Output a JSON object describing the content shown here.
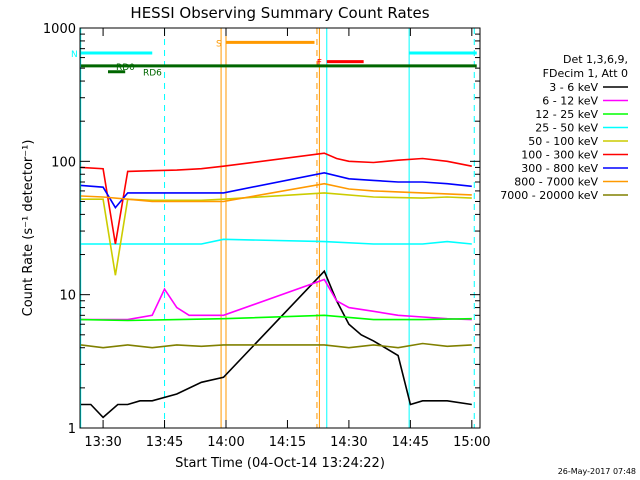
{
  "chart_data": {
    "type": "line",
    "title": "HESSI Observing Summary Count Rates",
    "xlabel": "Start Time (04-Oct-14 13:24:22)",
    "ylabel": "Count Rate (s⁻¹ detector⁻¹)",
    "yscale": "log",
    "ylim": [
      1,
      1000
    ],
    "xlim": [
      13.4061,
      15.0333
    ],
    "x_ticks": [
      "13:30",
      "13:45",
      "14:00",
      "14:15",
      "14:30",
      "14:45",
      "15:00"
    ],
    "x_tick_values": [
      13.5,
      13.75,
      14.0,
      14.25,
      14.5,
      14.75,
      15.0
    ],
    "y_ticks": [
      "1",
      "10",
      "100",
      "1000"
    ],
    "y_tick_values": [
      1,
      10,
      100,
      1000
    ],
    "legend": {
      "placement": "right",
      "header": [
        "Det 1,3,6,9,",
        "FDecim 1, Att 0"
      ]
    },
    "timestamp": "26-May-2017 07:48",
    "series": [
      {
        "name": "3 - 6 keV",
        "color": "#000000",
        "x": [
          13.41,
          13.45,
          13.5,
          13.56,
          13.6,
          13.65,
          13.7,
          13.8,
          13.9,
          13.99,
          14.4,
          14.45,
          14.5,
          14.55,
          14.6,
          14.7,
          14.75,
          14.8,
          14.9,
          15.0
        ],
        "y": [
          1.5,
          1.5,
          1.2,
          1.5,
          1.5,
          1.6,
          1.6,
          1.8,
          2.2,
          2.4,
          15,
          9,
          6,
          5,
          4.5,
          3.5,
          1.5,
          1.6,
          1.6,
          1.5
        ]
      },
      {
        "name": "6 - 12 keV",
        "color": "#ff00ff",
        "x": [
          13.41,
          13.5,
          13.6,
          13.7,
          13.75,
          13.8,
          13.85,
          13.9,
          13.99,
          14.4,
          14.45,
          14.5,
          14.6,
          14.7,
          14.8,
          14.9,
          15.0
        ],
        "y": [
          6.5,
          6.5,
          6.5,
          7.0,
          11.0,
          8.0,
          7.0,
          7.0,
          7.0,
          13,
          9,
          8,
          7.5,
          7.0,
          6.8,
          6.6,
          6.5
        ]
      },
      {
        "name": "12 - 25 keV",
        "color": "#00ff00",
        "x": [
          13.41,
          13.6,
          13.8,
          13.99,
          14.4,
          14.6,
          14.8,
          15.0
        ],
        "y": [
          6.5,
          6.4,
          6.5,
          6.6,
          7.0,
          6.5,
          6.5,
          6.6
        ]
      },
      {
        "name": "25 - 50 keV",
        "color": "#00ffff",
        "x": [
          13.41,
          13.5,
          13.6,
          13.7,
          13.8,
          13.9,
          13.99,
          14.4,
          14.6,
          14.8,
          14.9,
          15.0
        ],
        "y": [
          24,
          24,
          24,
          24,
          24,
          24,
          26,
          25,
          24,
          24,
          25,
          24
        ]
      },
      {
        "name": "50 - 100 keV",
        "color": "#cccc00",
        "x": [
          13.41,
          13.5,
          13.55,
          13.6,
          13.7,
          13.8,
          13.9,
          13.99,
          14.4,
          14.6,
          14.8,
          14.9,
          15.0
        ],
        "y": [
          52,
          52,
          14,
          52,
          51,
          51,
          51,
          52,
          58,
          54,
          53,
          54,
          53
        ]
      },
      {
        "name": "100 - 300 keV",
        "color": "#ff0000",
        "x": [
          13.41,
          13.5,
          13.55,
          13.6,
          13.7,
          13.8,
          13.9,
          13.99,
          14.4,
          14.45,
          14.5,
          14.6,
          14.7,
          14.8,
          14.9,
          15.0
        ],
        "y": [
          90,
          88,
          24,
          84,
          85,
          86,
          88,
          92,
          115,
          105,
          100,
          98,
          102,
          105,
          100,
          92
        ]
      },
      {
        "name": "300 - 800 keV",
        "color": "#0000ff",
        "x": [
          13.41,
          13.5,
          13.55,
          13.6,
          13.7,
          13.8,
          13.9,
          13.99,
          14.4,
          14.5,
          14.6,
          14.7,
          14.8,
          14.9,
          15.0
        ],
        "y": [
          66,
          64,
          45,
          58,
          58,
          58,
          58,
          58,
          82,
          74,
          72,
          70,
          70,
          68,
          65
        ]
      },
      {
        "name": "800 - 7000 keV",
        "color": "#ff9900",
        "x": [
          13.41,
          13.5,
          13.6,
          13.7,
          13.8,
          13.9,
          13.99,
          14.4,
          14.5,
          14.6,
          14.7,
          14.8,
          14.9,
          15.0
        ],
        "y": [
          55,
          54,
          52,
          50,
          50,
          50,
          50,
          68,
          62,
          60,
          59,
          58,
          57,
          56
        ]
      },
      {
        "name": "7000 - 20000 keV",
        "color": "#808000",
        "x": [
          13.41,
          13.5,
          13.6,
          13.7,
          13.8,
          13.9,
          13.99,
          14.4,
          14.5,
          14.6,
          14.7,
          14.8,
          14.9,
          15.0
        ],
        "y": [
          4.2,
          4.0,
          4.2,
          4.0,
          4.2,
          4.1,
          4.2,
          4.2,
          4.0,
          4.2,
          4.0,
          4.3,
          4.1,
          4.2
        ]
      }
    ],
    "vertical_markers": [
      {
        "x": 13.409,
        "color": "#00ffff",
        "style": "solid"
      },
      {
        "x": 13.75,
        "color": "#00ffff",
        "style": "dashed"
      },
      {
        "x": 13.98,
        "color": "#ff9900",
        "style": "solid"
      },
      {
        "x": 14.0,
        "color": "#ff9900",
        "style": "solid"
      },
      {
        "x": 14.37,
        "color": "#ff9900",
        "style": "dashed"
      },
      {
        "x": 14.41,
        "color": "#00ffff",
        "style": "solid"
      },
      {
        "x": 14.38,
        "color": "#ff9900",
        "style": "solid"
      },
      {
        "x": 14.745,
        "color": "#00ffff",
        "style": "solid"
      },
      {
        "x": 15.01,
        "color": "#00ffff",
        "style": "dashed"
      }
    ],
    "flag_bars": [
      {
        "label": "N",
        "color": "#00ffff",
        "x": [
          13.41,
          13.7
        ],
        "y": 650
      },
      {
        "label": "",
        "color": "#00ffff",
        "x": [
          14.745,
          15.02
        ],
        "y": 650
      },
      {
        "label": "S",
        "color": "#ff9900",
        "x": [
          14.0,
          14.36
        ],
        "y": 780
      },
      {
        "label": "F",
        "color": "#ff0000",
        "x": [
          14.41,
          14.56
        ],
        "y": 560
      },
      {
        "label": "RD0",
        "color": "#006600",
        "x": [
          13.41,
          15.02
        ],
        "y": 520
      },
      {
        "label": "RD6",
        "color": "#006600",
        "x": [
          13.52,
          13.59
        ],
        "y": 470
      }
    ]
  }
}
